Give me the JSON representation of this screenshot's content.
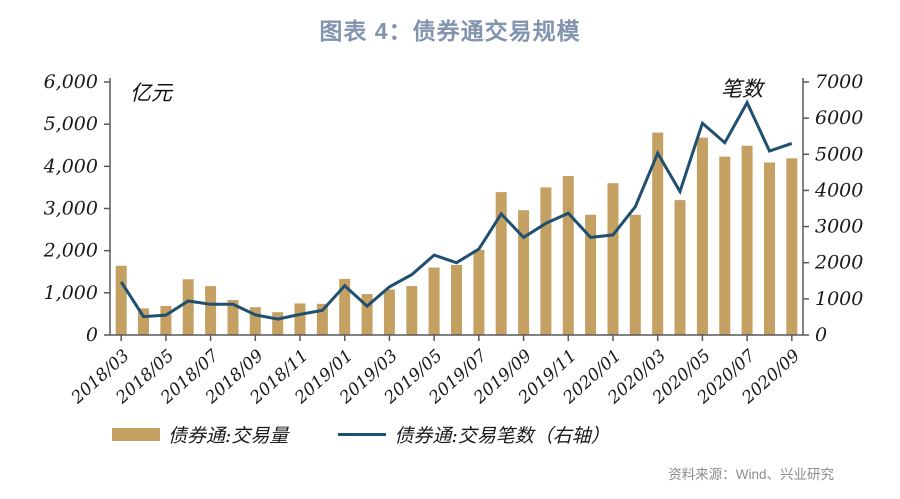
{
  "title": "图表 4：债券通交易规模",
  "source_note": "资料来源：Wind、兴业研究",
  "legend": [
    {
      "label": "债券通:交易量",
      "type": "bar",
      "color": "#C5A063"
    },
    {
      "label": "债券通:交易笔数（右轴）",
      "type": "line",
      "color": "#20506F"
    }
  ],
  "colors": {
    "bar": "#C5A063",
    "line": "#20506F",
    "title": "#8293AE",
    "axis": "#595959",
    "axis_text": "#1a1a1a",
    "source_text": "#8C8C8C"
  },
  "chart_data": {
    "type": "bar",
    "subtype": "bar+line dual axis",
    "title": "图表 4：债券通交易规模",
    "x": [
      "2018/03",
      "2018/04",
      "2018/05",
      "2018/06",
      "2018/07",
      "2018/08",
      "2018/09",
      "2018/10",
      "2018/11",
      "2018/12",
      "2019/01",
      "2019/02",
      "2019/03",
      "2019/04",
      "2019/05",
      "2019/06",
      "2019/07",
      "2019/08",
      "2019/09",
      "2019/10",
      "2019/11",
      "2019/12",
      "2020/01",
      "2020/02",
      "2020/03",
      "2020/04",
      "2020/05",
      "2020/06",
      "2020/07",
      "2020/08",
      "2020/09"
    ],
    "x_tick_labels": [
      "2018/03",
      "2018/05",
      "2018/07",
      "2018/09",
      "2018/11",
      "2019/01",
      "2019/03",
      "2019/05",
      "2019/07",
      "2019/09",
      "2019/11",
      "2020/01",
      "2020/03",
      "2020/05",
      "2020/07",
      "2020/09"
    ],
    "left_axis": {
      "label": "亿元",
      "min": 0,
      "max": 6000,
      "tick_step": 1000,
      "tick_labels": [
        "0",
        "1,000",
        "2,000",
        "3,000",
        "4,000",
        "5,000",
        "6,000"
      ]
    },
    "right_axis": {
      "label": "笔数",
      "min": 0,
      "max": 7000,
      "tick_step": 1000,
      "tick_labels": [
        "0",
        "1000",
        "2000",
        "3000",
        "4000",
        "5000",
        "6000",
        "7000"
      ]
    },
    "grid": false,
    "legend_position": "bottom",
    "series": [
      {
        "name": "债券通:交易量",
        "type": "bar",
        "axis": "left",
        "color": "#C5A063",
        "values": [
          1640,
          630,
          690,
          1320,
          1160,
          830,
          660,
          540,
          750,
          740,
          1330,
          970,
          1080,
          1160,
          1600,
          1660,
          2020,
          3390,
          2960,
          3500,
          3770,
          2850,
          3600,
          2850,
          4800,
          3200,
          4680,
          4230,
          4490,
          4090,
          4190
        ]
      },
      {
        "name": "债券通:交易笔数（右轴）",
        "type": "line",
        "axis": "right",
        "color": "#20506F",
        "values": [
          1470,
          510,
          550,
          940,
          850,
          850,
          560,
          440,
          570,
          680,
          1360,
          800,
          1330,
          1670,
          2210,
          2000,
          2380,
          3350,
          2700,
          3090,
          3370,
          2700,
          2770,
          3550,
          5030,
          3970,
          5860,
          5320,
          6430,
          5090,
          5300
        ]
      }
    ]
  }
}
